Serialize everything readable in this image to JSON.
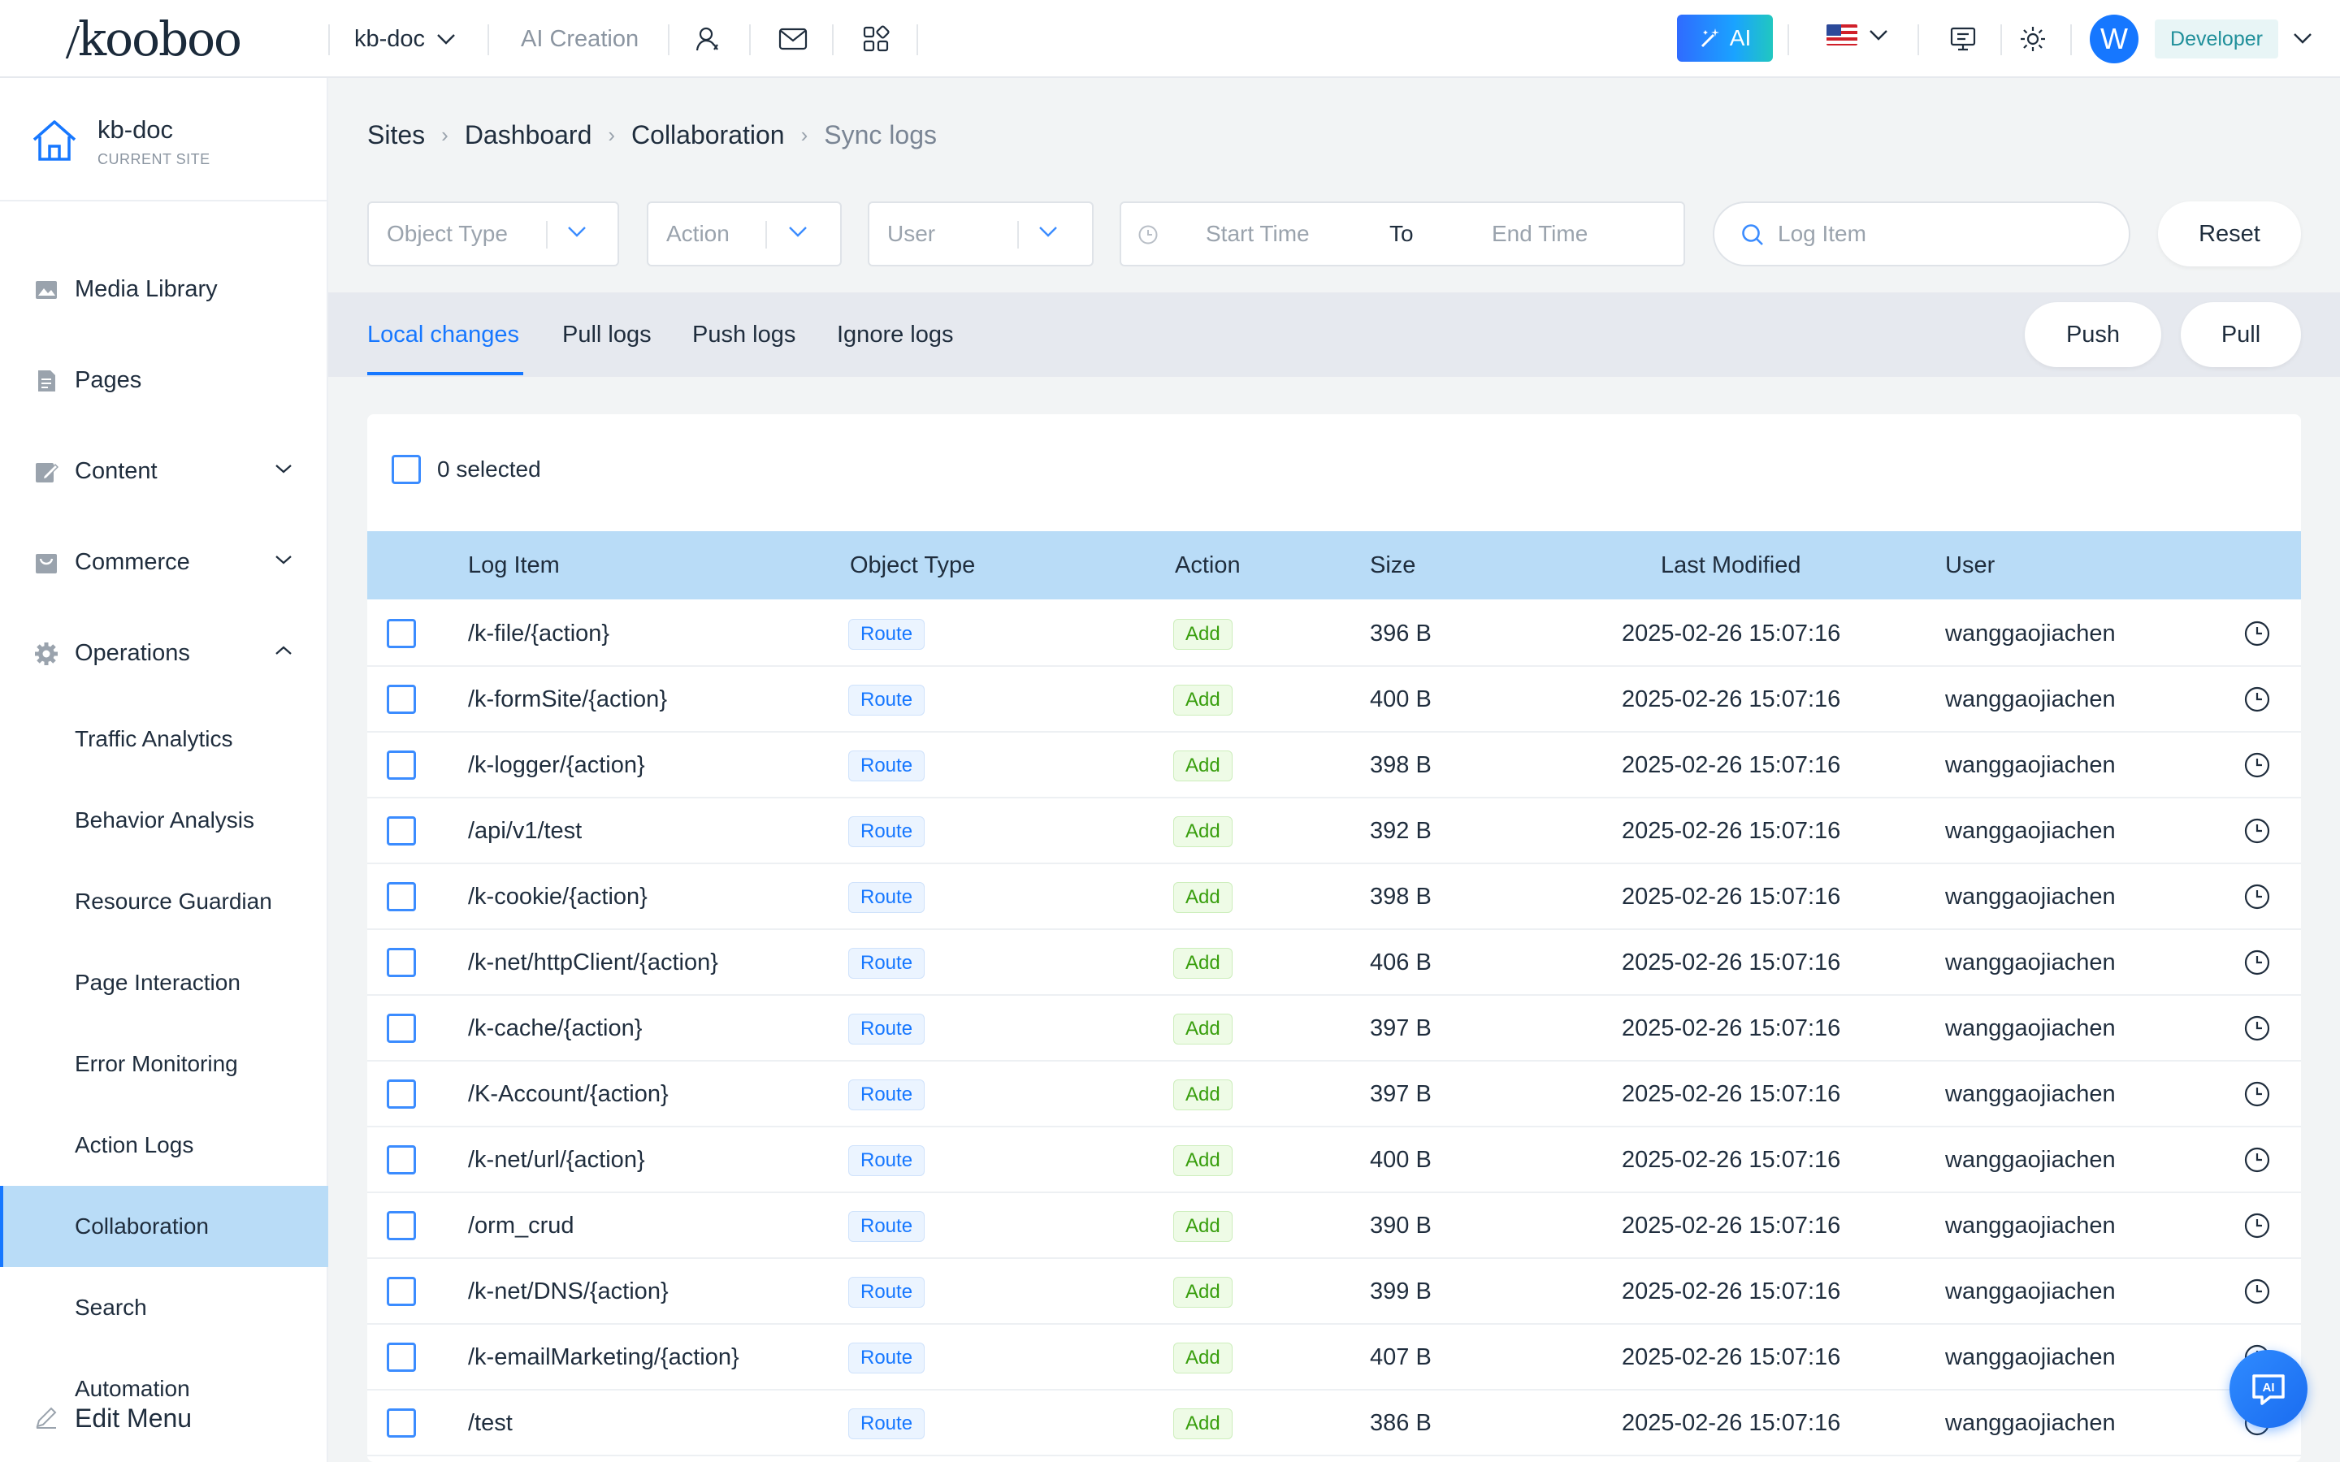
{
  "topbar": {
    "logo": "kooboo",
    "site_name": "kb-doc",
    "ai_creation": "AI Creation",
    "ai_button": "AI",
    "avatar_letter": "W",
    "role": "Developer",
    "icons": [
      "people-icon",
      "mail-icon",
      "apps-grid-icon",
      "monitor-icon",
      "sun-icon"
    ]
  },
  "sidebar": {
    "site_name": "kb-doc",
    "site_sub": "CURRENT SITE",
    "items": [
      {
        "label": "Media Library",
        "icon": "image-icon"
      },
      {
        "label": "Pages",
        "icon": "page-icon"
      },
      {
        "label": "Content",
        "icon": "edit-icon"
      },
      {
        "label": "Commerce",
        "icon": "cart-icon"
      },
      {
        "label": "Operations",
        "icon": "gear-icon"
      }
    ],
    "sub_items": [
      "Traffic Analytics",
      "Behavior Analysis",
      "Resource Guardian",
      "Page Interaction",
      "Error Monitoring",
      "Action Logs",
      "Collaboration",
      "Search",
      "Automation"
    ],
    "edit_menu": "Edit Menu"
  },
  "breadcrumb": [
    "Sites",
    "Dashboard",
    "Collaboration",
    "Sync logs"
  ],
  "filters": {
    "object_type": "Object Type",
    "action": "Action",
    "user": "User",
    "start_time": "Start Time",
    "to": "To",
    "end_time": "End Time",
    "search_placeholder": "Log Item",
    "reset": "Reset"
  },
  "tabs": [
    "Local changes",
    "Pull logs",
    "Push logs",
    "Ignore logs"
  ],
  "actions": {
    "push": "Push",
    "pull": "Pull"
  },
  "table": {
    "selected": "0 selected",
    "columns": [
      "Log Item",
      "Object Type",
      "Action",
      "Size",
      "Last Modified",
      "User"
    ],
    "rows": [
      [
        "/k-file/{action}",
        "Route",
        "Add",
        "396 B",
        "2025-02-26 15:07:16",
        "wanggaojiachen"
      ],
      [
        "/k-formSite/{action}",
        "Route",
        "Add",
        "400 B",
        "2025-02-26 15:07:16",
        "wanggaojiachen"
      ],
      [
        "/k-logger/{action}",
        "Route",
        "Add",
        "398 B",
        "2025-02-26 15:07:16",
        "wanggaojiachen"
      ],
      [
        "/api/v1/test",
        "Route",
        "Add",
        "392 B",
        "2025-02-26 15:07:16",
        "wanggaojiachen"
      ],
      [
        "/k-cookie/{action}",
        "Route",
        "Add",
        "398 B",
        "2025-02-26 15:07:16",
        "wanggaojiachen"
      ],
      [
        "/k-net/httpClient/{action}",
        "Route",
        "Add",
        "406 B",
        "2025-02-26 15:07:16",
        "wanggaojiachen"
      ],
      [
        "/k-cache/{action}",
        "Route",
        "Add",
        "397 B",
        "2025-02-26 15:07:16",
        "wanggaojiachen"
      ],
      [
        "/K-Account/{action}",
        "Route",
        "Add",
        "397 B",
        "2025-02-26 15:07:16",
        "wanggaojiachen"
      ],
      [
        "/k-net/url/{action}",
        "Route",
        "Add",
        "400 B",
        "2025-02-26 15:07:16",
        "wanggaojiachen"
      ],
      [
        "/orm_crud",
        "Route",
        "Add",
        "390 B",
        "2025-02-26 15:07:16",
        "wanggaojiachen"
      ],
      [
        "/k-net/DNS/{action}",
        "Route",
        "Add",
        "399 B",
        "2025-02-26 15:07:16",
        "wanggaojiachen"
      ],
      [
        "/k-emailMarketing/{action}",
        "Route",
        "Add",
        "407 B",
        "2025-02-26 15:07:16",
        "wanggaojiachen"
      ],
      [
        "/test",
        "Route",
        "Add",
        "386 B",
        "2025-02-26 15:07:16",
        "wanggaojiachen"
      ]
    ]
  },
  "fab_label": "AI",
  "colors": {
    "accent": "#1677ff",
    "header_row": "#b9dcf7",
    "active_nav": "#b9dcf7",
    "tag_route": "#1677ff",
    "tag_add": "#389e0d"
  }
}
